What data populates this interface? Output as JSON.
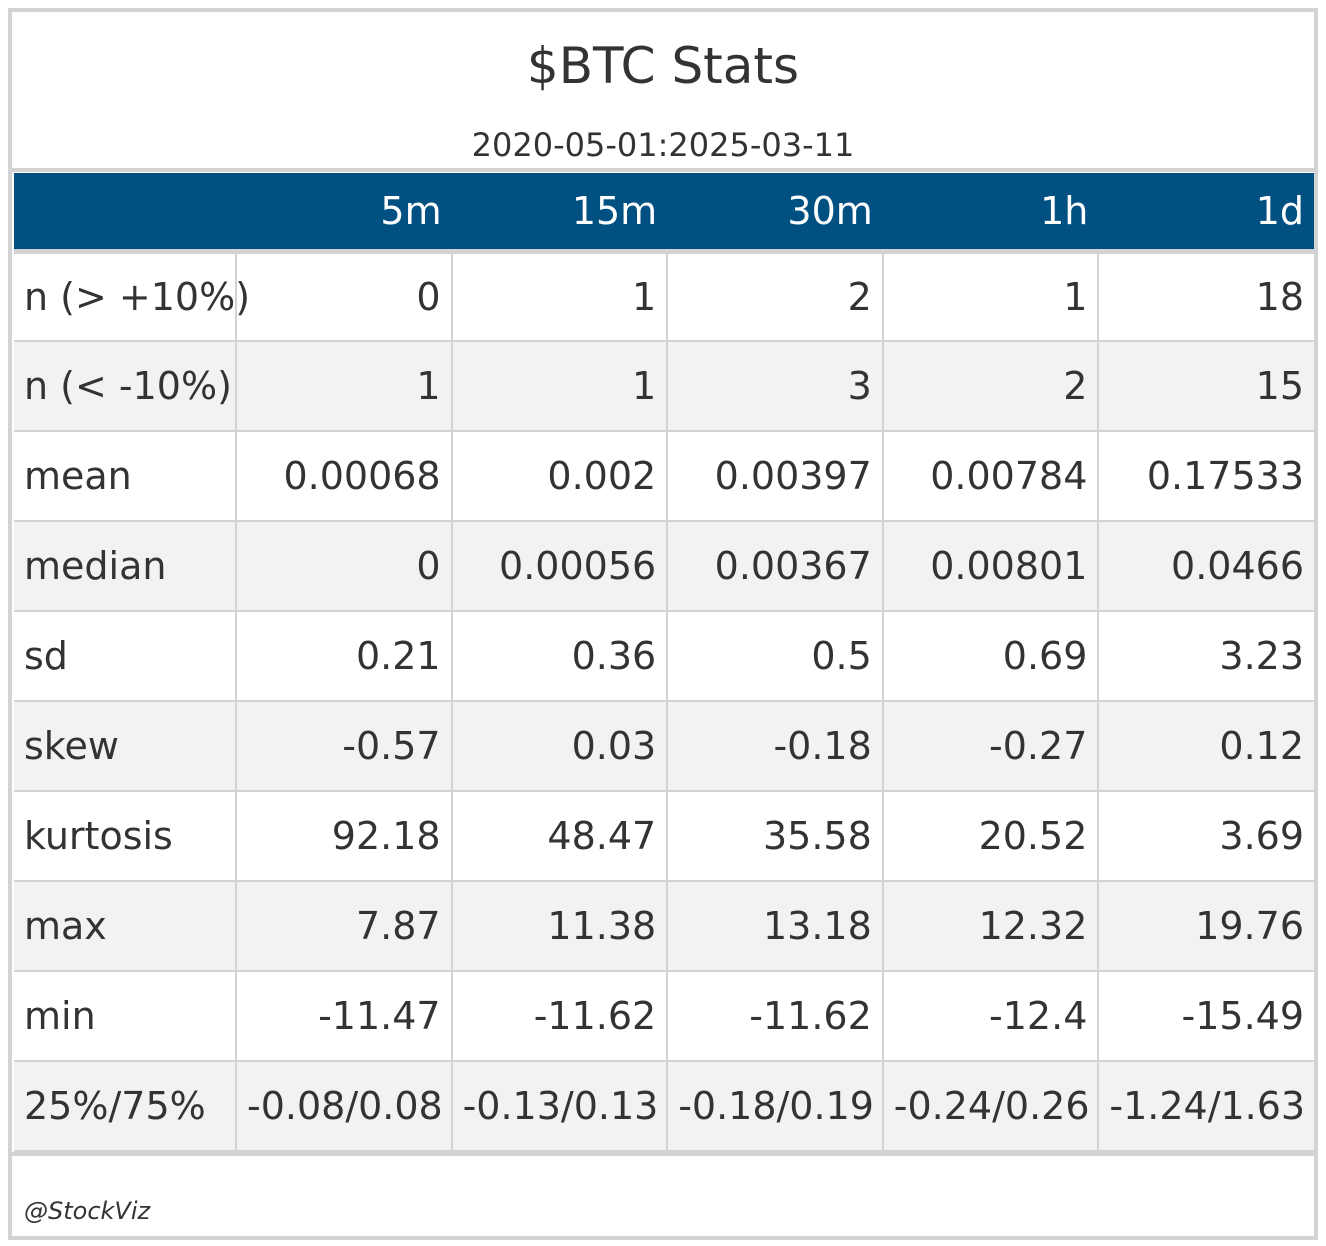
{
  "header": {
    "title": "$BTC Stats",
    "subtitle": "2020-05-01:2025-03-11"
  },
  "table": {
    "columns": [
      "",
      "5m",
      "15m",
      "30m",
      "1h",
      "1d"
    ],
    "rows": [
      {
        "label": "n (> +10%)",
        "values": [
          "0",
          "1",
          "2",
          "1",
          "18"
        ]
      },
      {
        "label": "n (< -10%)",
        "values": [
          "1",
          "1",
          "3",
          "2",
          "15"
        ]
      },
      {
        "label": "mean",
        "values": [
          "0.00068",
          "0.002",
          "0.00397",
          "0.00784",
          "0.17533"
        ]
      },
      {
        "label": "median",
        "values": [
          "0",
          "0.00056",
          "0.00367",
          "0.00801",
          "0.0466"
        ]
      },
      {
        "label": "sd",
        "values": [
          "0.21",
          "0.36",
          "0.5",
          "0.69",
          "3.23"
        ]
      },
      {
        "label": "skew",
        "values": [
          "-0.57",
          "0.03",
          "-0.18",
          "-0.27",
          "0.12"
        ]
      },
      {
        "label": "kurtosis",
        "values": [
          "92.18",
          "48.47",
          "35.58",
          "20.52",
          "3.69"
        ]
      },
      {
        "label": "max",
        "values": [
          "7.87",
          "11.38",
          "13.18",
          "12.32",
          "19.76"
        ]
      },
      {
        "label": "min",
        "values": [
          "-11.47",
          "-11.62",
          "-11.62",
          "-12.4",
          "-15.49"
        ]
      },
      {
        "label": "25%/75%",
        "values": [
          "-0.08/0.08",
          "-0.13/0.13",
          "-0.18/0.19",
          "-0.24/0.26",
          "-1.24/1.63"
        ]
      }
    ]
  },
  "footer": {
    "source": "@StockViz"
  },
  "colors": {
    "header_bg": "#005082",
    "header_text": "#ffffff",
    "stripe": "#f2f2f2",
    "border": "#d3d3d3",
    "text": "#333333"
  }
}
